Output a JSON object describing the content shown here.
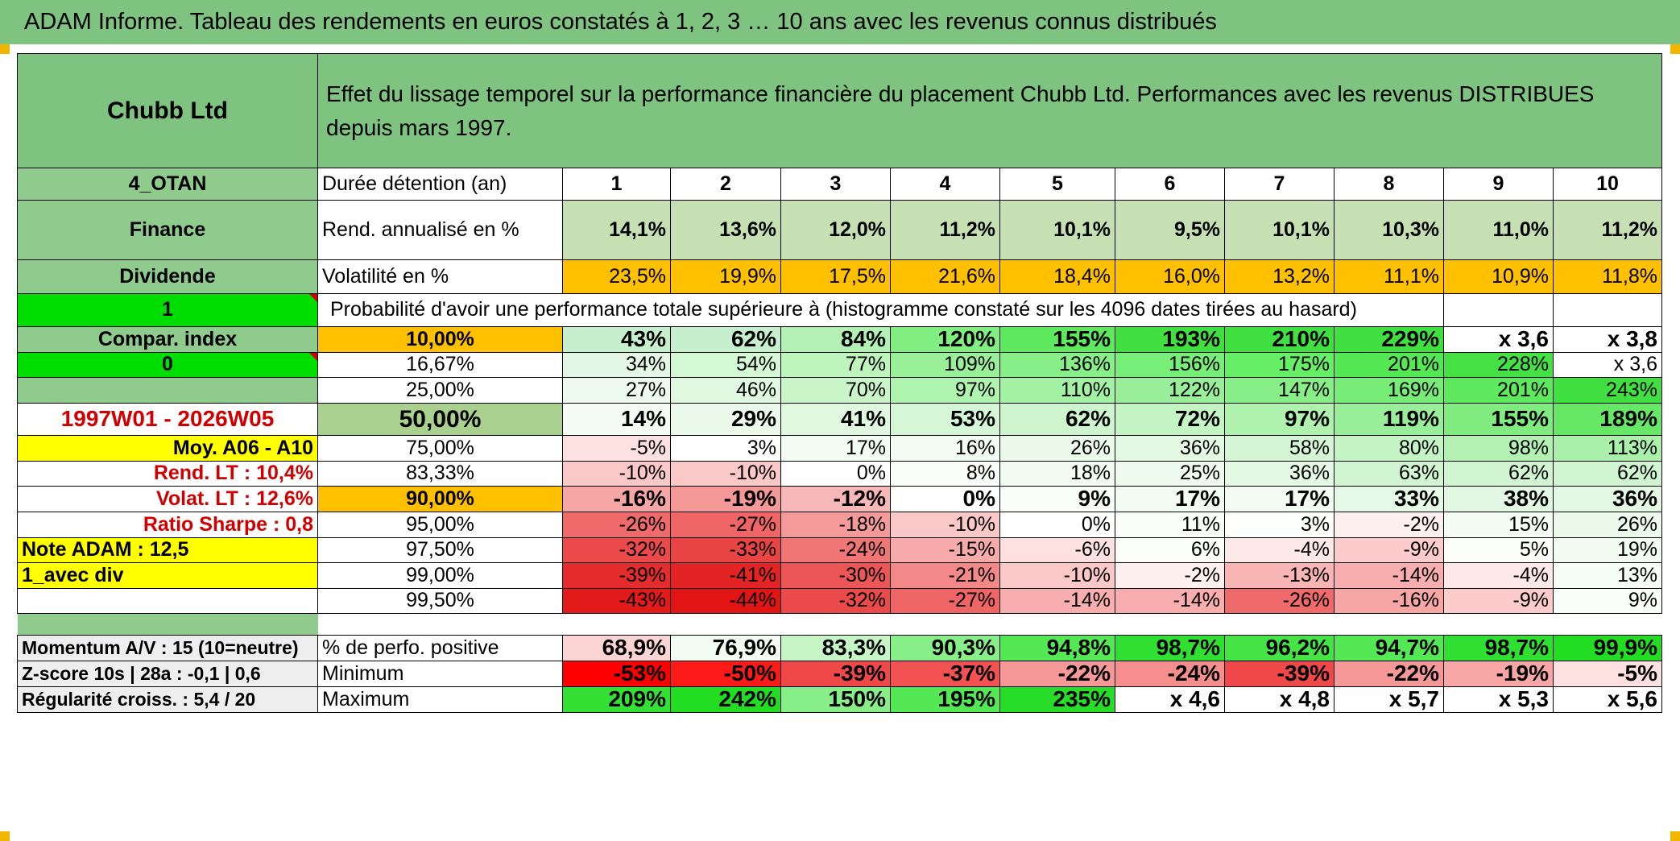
{
  "title": "ADAM Informe. Tableau des rendements en euros constatés à 1, 2, 3 … 10 ans avec les revenus connus distribués",
  "header": {
    "company": "Chubb Ltd",
    "description": "Effet du lissage temporel sur la performance financière du placement Chubb Ltd. Performances avec les revenus DISTRIBUES depuis mars 1997."
  },
  "side": {
    "code": "4_OTAN",
    "sector": "Finance",
    "type": "Dividende",
    "flag1": "1",
    "compar": "Compar. index",
    "flag0": "0",
    "period": "1997W01 - 2026W05",
    "moy": "Moy. A06 - A10",
    "rend_lt": "Rend. LT :   10,4%",
    "volat_lt": "Volat. LT :   12,6%",
    "sharpe": "Ratio Sharpe :   0,8",
    "note": "Note ADAM : 12,5",
    "div": "1_avec div",
    "momentum": "Momentum A/V : 15 (10=neutre)",
    "zscore": "Z-score 10s | 28a : -0,1 | 0,6",
    "regularite": "Régularité croiss. : 5,4 / 20"
  },
  "years": [
    "1",
    "2",
    "3",
    "4",
    "5",
    "6",
    "7",
    "8",
    "9",
    "10"
  ],
  "labels": {
    "duree": "Durée détention (an)",
    "rend": "Rend. annualisé en %",
    "volat": "Volatilité en %",
    "proba": "Probabilité d'avoir une performance totale supérieure à (histogramme constaté sur les 4096 dates tirées au hasard)",
    "positive": "% de perfo. positive",
    "minimum": "Minimum",
    "maximum": "Maximum"
  },
  "rend": [
    "14,1%",
    "13,6%",
    "12,0%",
    "11,2%",
    "10,1%",
    "9,5%",
    "10,1%",
    "10,3%",
    "11,0%",
    "11,2%"
  ],
  "volat": [
    "23,5%",
    "19,9%",
    "17,5%",
    "21,6%",
    "18,4%",
    "16,0%",
    "13,2%",
    "11,1%",
    "10,9%",
    "11,8%"
  ],
  "proba_rows": [
    {
      "p": "10,00%",
      "v": [
        "43%",
        "62%",
        "84%",
        "120%",
        "155%",
        "193%",
        "210%",
        "229%",
        "x 3,6",
        "x 3,8"
      ],
      "c": [
        "#c6efce",
        "#c6efce",
        "#b3f0b3",
        "#80ee80",
        "#5ee85e",
        "#40e040",
        "#40e040",
        "#40e040",
        "#ffffff",
        "#ffffff"
      ]
    },
    {
      "p": "16,67%",
      "v": [
        "34%",
        "54%",
        "77%",
        "109%",
        "136%",
        "156%",
        "175%",
        "201%",
        "228%",
        "x 3,6"
      ],
      "c": [
        "#e4f7e4",
        "#d4f7d4",
        "#bdf5bd",
        "#99f099",
        "#88ee88",
        "#77ee77",
        "#66ee66",
        "#55e855",
        "#44e044",
        "#ffffff"
      ]
    },
    {
      "p": "25,00%",
      "v": [
        "27%",
        "46%",
        "70%",
        "97%",
        "110%",
        "122%",
        "147%",
        "169%",
        "201%",
        "243%"
      ],
      "c": [
        "#eefaee",
        "#dff8df",
        "#c9f5c9",
        "#aef3ae",
        "#a3f1a3",
        "#99ef99",
        "#88ee88",
        "#77ec77",
        "#5ee85e",
        "#40e040"
      ]
    },
    {
      "p": "50,00%",
      "v": [
        "14%",
        "29%",
        "41%",
        "53%",
        "62%",
        "72%",
        "97%",
        "119%",
        "155%",
        "189%"
      ],
      "c": [
        "#f5fcf5",
        "#ebfaeb",
        "#e0f8e0",
        "#d6f7d6",
        "#cef5ce",
        "#c4f4c4",
        "#aef2ae",
        "#99ef99",
        "#80ec80",
        "#66e866"
      ]
    },
    {
      "p": "75,00%",
      "v": [
        "-5%",
        "3%",
        "17%",
        "16%",
        "26%",
        "36%",
        "58%",
        "80%",
        "98%",
        "113%"
      ],
      "c": [
        "#fde0e0",
        "#ffffff",
        "#f3fcf3",
        "#f3fcf3",
        "#ecfaec",
        "#e4f9e4",
        "#d4f6d4",
        "#c4f4c4",
        "#b3f1b3",
        "#aaf0aa"
      ]
    },
    {
      "p": "83,33%",
      "v": [
        "-10%",
        "-10%",
        "0%",
        "8%",
        "18%",
        "25%",
        "36%",
        "63%",
        "62%",
        "62%"
      ],
      "c": [
        "#fbc8c8",
        "#fbc8c8",
        "#ffffff",
        "#fafefa",
        "#f2fbf2",
        "#edfaed",
        "#e4f9e4",
        "#d0f5d0",
        "#d0f5d0",
        "#d0f5d0"
      ]
    },
    {
      "p": "90,00%",
      "v": [
        "-16%",
        "-19%",
        "-12%",
        "0%",
        "9%",
        "17%",
        "17%",
        "33%",
        "38%",
        "36%"
      ],
      "c": [
        "#f7a6a6",
        "#f59898",
        "#f9b8b8",
        "#ffffff",
        "#fafefa",
        "#f3fcf3",
        "#f3fcf3",
        "#e6f9e6",
        "#e2f8e2",
        "#e4f9e4"
      ]
    },
    {
      "p": "95,00%",
      "v": [
        "-26%",
        "-27%",
        "-18%",
        "-10%",
        "0%",
        "11%",
        "3%",
        "-2%",
        "15%",
        "26%"
      ],
      "c": [
        "#ef6a6a",
        "#ef6464",
        "#f49a9a",
        "#fbc8c8",
        "#ffffff",
        "#f8fdf8",
        "#fdfffd",
        "#fff0f0",
        "#f4fcf4",
        "#ecfaec"
      ]
    },
    {
      "p": "97,50%",
      "v": [
        "-32%",
        "-33%",
        "-24%",
        "-15%",
        "-6%",
        "6%",
        "-4%",
        "-9%",
        "5%",
        "19%"
      ],
      "c": [
        "#ea4a4a",
        "#e94444",
        "#f07676",
        "#f7aaaa",
        "#fde0e0",
        "#fbfefb",
        "#fde8e8",
        "#fccccc",
        "#fcfefc",
        "#f1fbf1"
      ]
    },
    {
      "p": "99,00%",
      "v": [
        "-39%",
        "-41%",
        "-30%",
        "-21%",
        "-10%",
        "-2%",
        "-13%",
        "-14%",
        "-4%",
        "13%"
      ],
      "c": [
        "#e52c2c",
        "#e42424",
        "#ec5656",
        "#f28888",
        "#fbc8c8",
        "#fff0f0",
        "#f9b4b4",
        "#f8aeae",
        "#fde8e8",
        "#f6fdf6"
      ]
    },
    {
      "p": "99,50%",
      "v": [
        "-43%",
        "-44%",
        "-32%",
        "-27%",
        "-14%",
        "-14%",
        "-26%",
        "-16%",
        "-9%",
        "9%"
      ],
      "c": [
        "#e31a1a",
        "#e21414",
        "#ea4a4a",
        "#ef6464",
        "#f8aeae",
        "#f8aeae",
        "#ef6a6a",
        "#f7a6a6",
        "#fccccc",
        "#fafefa"
      ]
    }
  ],
  "positive": {
    "v": [
      "68,9%",
      "76,9%",
      "83,3%",
      "90,3%",
      "94,8%",
      "98,7%",
      "96,2%",
      "94,7%",
      "98,7%",
      "99,9%"
    ],
    "c": [
      "#fcd4d4",
      "#f2fcf2",
      "#c6f5c6",
      "#88ee88",
      "#55e855",
      "#30e030",
      "#44e444",
      "#55e855",
      "#30e030",
      "#22dd22"
    ]
  },
  "minimum": {
    "v": [
      "-53%",
      "-50%",
      "-39%",
      "-37%",
      "-22%",
      "-24%",
      "-39%",
      "-22%",
      "-19%",
      "-5%"
    ],
    "c": [
      "#ff0000",
      "#ff1a1a",
      "#f04848",
      "#f25252",
      "#f79898",
      "#f68e8e",
      "#f04848",
      "#f79898",
      "#f8a6a6",
      "#fde0e0"
    ]
  },
  "maximum": {
    "v": [
      "209%",
      "242%",
      "150%",
      "195%",
      "235%",
      "x 4,6",
      "x 4,8",
      "x 5,7",
      "x 5,3",
      "x 5,6"
    ],
    "c": [
      "#33e033",
      "#22dd22",
      "#88ee88",
      "#55e855",
      "#28dd28",
      "#ffffff",
      "#ffffff",
      "#ffffff",
      "#ffffff",
      "#ffffff"
    ]
  }
}
